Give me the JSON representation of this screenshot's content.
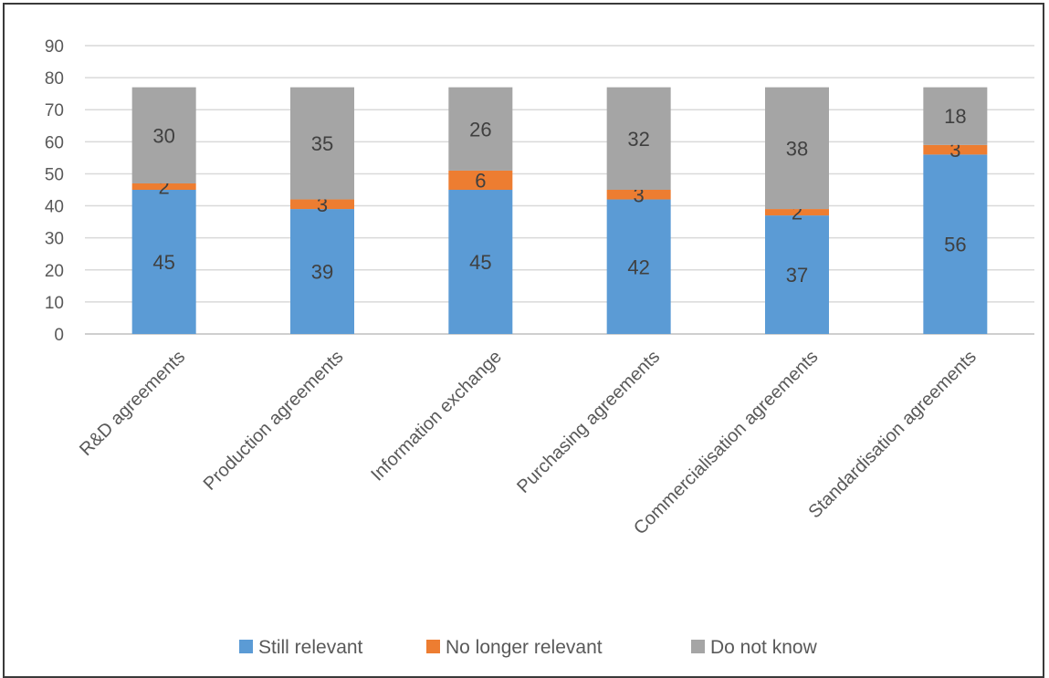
{
  "chart_data": {
    "type": "bar",
    "stacked": true,
    "categories": [
      "R&D agreements",
      "Production agreements",
      "Information exchange",
      "Purchasing agreements",
      "Commercialisation agreements",
      "Standardisation agreements"
    ],
    "series": [
      {
        "name": "Still relevant",
        "color": "#5b9bd5",
        "values": [
          45,
          39,
          45,
          42,
          37,
          56
        ]
      },
      {
        "name": "No longer relevant",
        "color": "#ed7d31",
        "values": [
          2,
          3,
          6,
          3,
          2,
          3
        ]
      },
      {
        "name": "Do not know",
        "color": "#a5a5a5",
        "values": [
          30,
          35,
          26,
          32,
          38,
          18
        ]
      }
    ],
    "title": "",
    "xlabel": "",
    "ylabel": "",
    "ylim": [
      0,
      90
    ],
    "yticks": [
      0,
      10,
      20,
      30,
      40,
      50,
      60,
      70,
      80,
      90
    ],
    "grid": true,
    "legend": "bottom-center",
    "data_labels": true
  }
}
